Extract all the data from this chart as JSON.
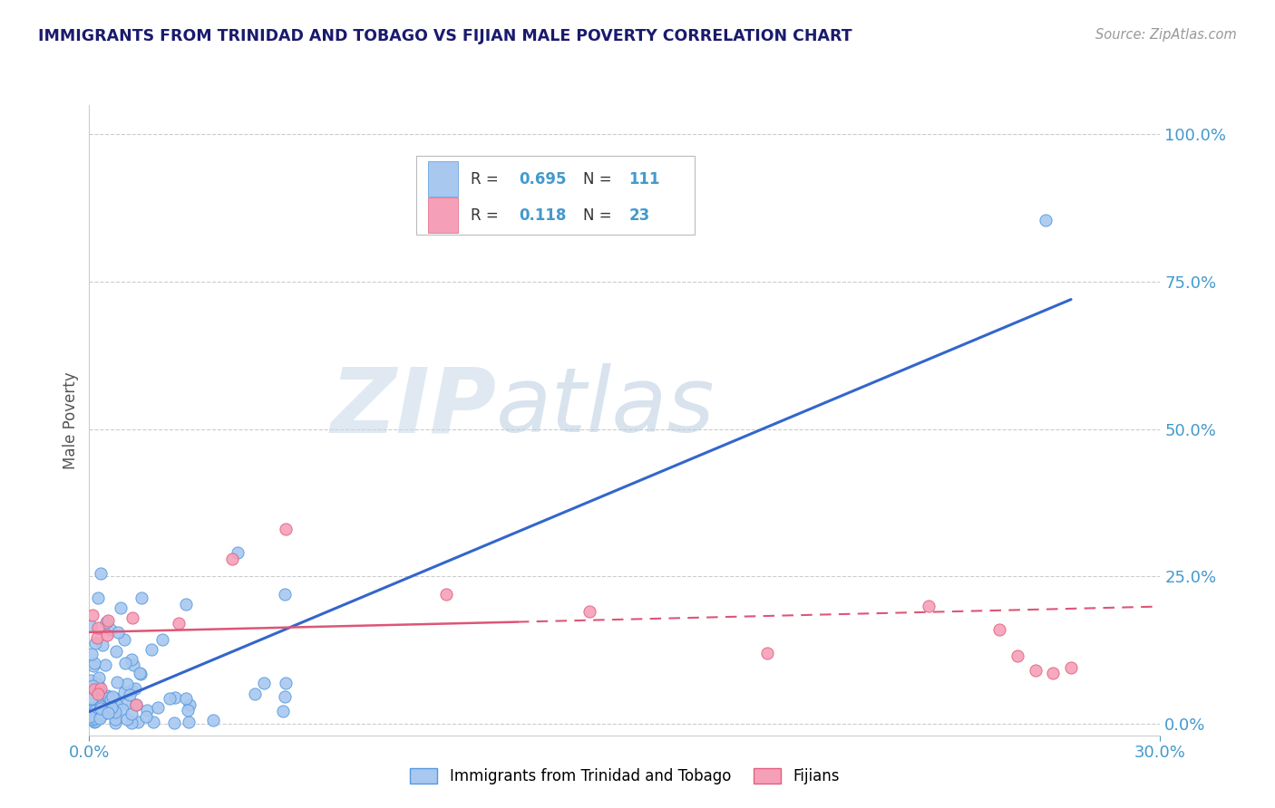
{
  "title": "IMMIGRANTS FROM TRINIDAD AND TOBAGO VS FIJIAN MALE POVERTY CORRELATION CHART",
  "source": "Source: ZipAtlas.com",
  "ylabel": "Male Poverty",
  "xlim": [
    0.0,
    0.3
  ],
  "ylim": [
    -0.02,
    1.05
  ],
  "yticks": [
    0.0,
    0.25,
    0.5,
    0.75,
    1.0
  ],
  "ytick_labels": [
    "0.0%",
    "25.0%",
    "50.0%",
    "75.0%",
    "100.0%"
  ],
  "xticks": [
    0.0,
    0.3
  ],
  "xtick_labels": [
    "0.0%",
    "30.0%"
  ],
  "series1_color": "#a8c8f0",
  "series1_edge": "#5599dd",
  "series2_color": "#f5a0b8",
  "series2_edge": "#e06080",
  "trend1_color": "#3366cc",
  "trend2_color": "#dd5577",
  "legend_label1": "Immigrants from Trinidad and Tobago",
  "legend_label2": "Fijians",
  "R1": "0.695",
  "N1": "111",
  "R2": "0.118",
  "N2": "23",
  "watermark_zip": "ZIP",
  "watermark_atlas": "atlas",
  "watermark_color_zip": "#c5d8ec",
  "watermark_color_atlas": "#c5d8ec",
  "title_color": "#1a1a6e",
  "axis_label_color": "#555555",
  "tick_color": "#4499cc",
  "grid_color": "#cccccc",
  "background_color": "#ffffff",
  "trend1_x0": 0.0,
  "trend1_y0": 0.02,
  "trend1_x1": 0.275,
  "trend1_y1": 0.72,
  "trend2_x0": 0.0,
  "trend2_y0": 0.155,
  "trend2_x1": 0.275,
  "trend2_y1": 0.195,
  "trend2_dash_x0": 0.12,
  "trend2_dash_x1": 0.3,
  "trend2_dash_y0": 0.175,
  "trend2_dash_y1": 0.2
}
